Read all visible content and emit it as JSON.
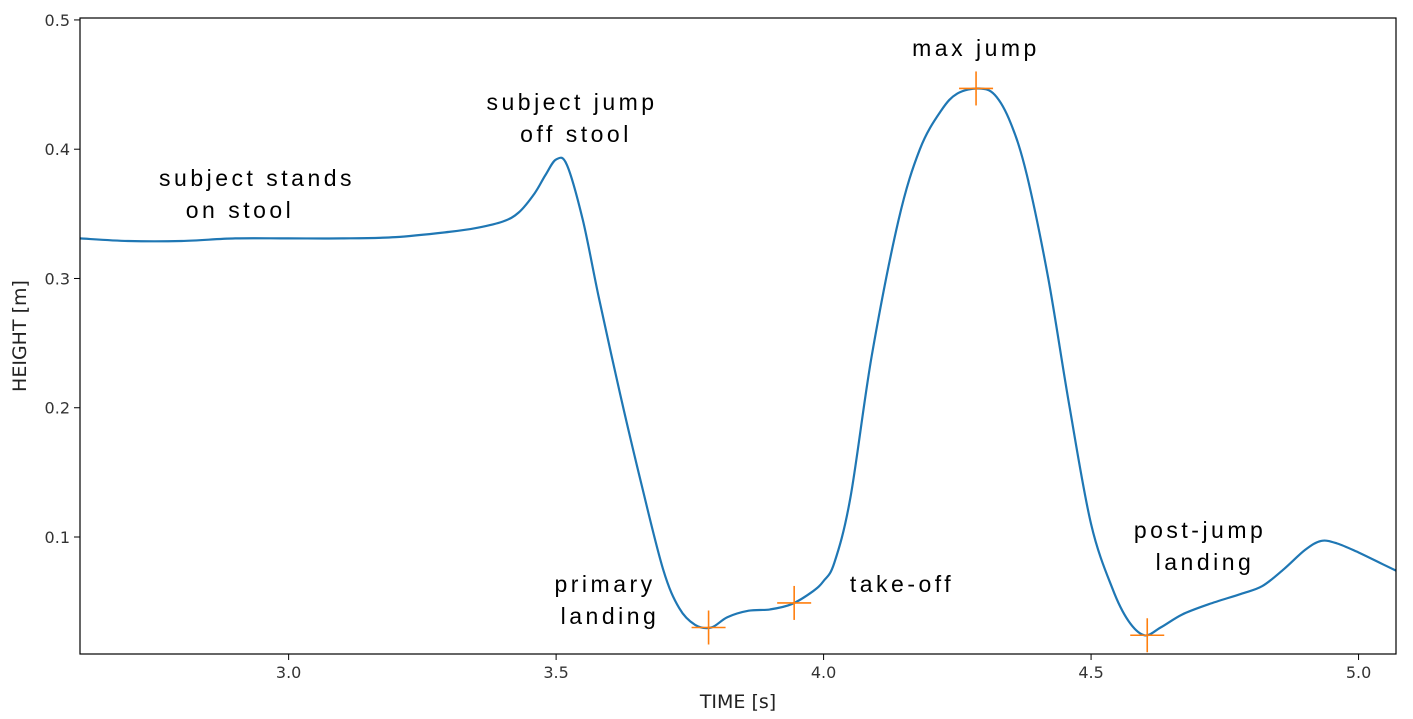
{
  "chart_data": {
    "type": "line",
    "xlabel": "TIME [s]",
    "ylabel": "HEIGHT [m]",
    "xlim": [
      2.61,
      5.07
    ],
    "ylim": [
      0.0095,
      0.5015
    ],
    "xticks": [
      3.0,
      3.5,
      4.0,
      4.5,
      5.0
    ],
    "xtick_labels": [
      "3.0",
      "3.5",
      "4.0",
      "4.5",
      "5.0"
    ],
    "yticks": [
      0.1,
      0.2,
      0.3,
      0.4,
      0.5
    ],
    "ytick_labels": [
      "0.1",
      "0.2",
      "0.3",
      "0.4",
      "0.5"
    ],
    "grid": false,
    "series": [
      {
        "color": "#1f77b4",
        "x": [
          2.61,
          2.7,
          2.8,
          2.9,
          3.0,
          3.1,
          3.2,
          3.3,
          3.35,
          3.4,
          3.43,
          3.46,
          3.48,
          3.5,
          3.52,
          3.55,
          3.58,
          3.62,
          3.66,
          3.7,
          3.73,
          3.76,
          3.79,
          3.82,
          3.86,
          3.9,
          3.94,
          3.98,
          4.0,
          4.02,
          4.05,
          4.09,
          4.14,
          4.18,
          4.22,
          4.25,
          4.29,
          4.32,
          4.35,
          4.38,
          4.42,
          4.46,
          4.5,
          4.54,
          4.57,
          4.6,
          4.63,
          4.67,
          4.72,
          4.78,
          4.82,
          4.86,
          4.9,
          4.93,
          4.96,
          5.0,
          5.04,
          5.07
        ],
        "y": [
          0.331,
          0.329,
          0.329,
          0.331,
          0.331,
          0.331,
          0.332,
          0.336,
          0.339,
          0.344,
          0.351,
          0.366,
          0.38,
          0.392,
          0.388,
          0.345,
          0.285,
          0.21,
          0.14,
          0.075,
          0.045,
          0.032,
          0.03,
          0.038,
          0.043,
          0.044,
          0.048,
          0.058,
          0.066,
          0.08,
          0.13,
          0.24,
          0.345,
          0.4,
          0.43,
          0.443,
          0.447,
          0.442,
          0.42,
          0.38,
          0.3,
          0.2,
          0.11,
          0.06,
          0.035,
          0.024,
          0.03,
          0.04,
          0.048,
          0.056,
          0.062,
          0.075,
          0.09,
          0.097,
          0.095,
          0.088,
          0.08,
          0.074
        ]
      },
      {
        "color": "#ff7f0e",
        "marker": "+",
        "x": [
          3.785,
          3.945,
          4.285,
          4.605
        ],
        "y": [
          0.03,
          0.049,
          0.447,
          0.024
        ]
      }
    ],
    "annotations": [
      {
        "lines": [
          "subject stands",
          "on stool"
        ]
      },
      {
        "lines": [
          "subject jump",
          "off stool"
        ]
      },
      {
        "lines": [
          "max jump"
        ]
      },
      {
        "lines": [
          "primary",
          "landing"
        ]
      },
      {
        "lines": [
          "take-off"
        ]
      },
      {
        "lines": [
          "post-jump",
          "landing"
        ]
      }
    ]
  }
}
